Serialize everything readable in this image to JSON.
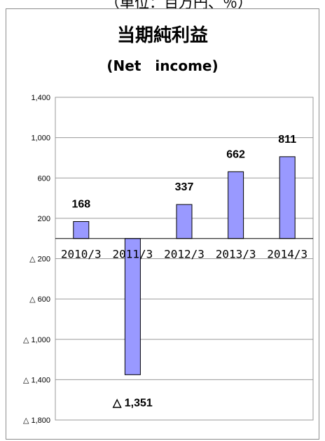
{
  "header_clip": "（単位：百万円、％）",
  "chart_data": {
    "type": "bar",
    "title": "当期純利益",
    "subtitle": "(Net　income)",
    "categories": [
      "2010/3",
      "2011/3",
      "2012/3",
      "2013/3",
      "2014/3"
    ],
    "series": [
      {
        "values": [
          168,
          -1351,
          337,
          662,
          811
        ]
      }
    ],
    "data_labels": [
      "168",
      "△ 1,351",
      "337",
      "662",
      "811"
    ],
    "y_ticks": [
      1400,
      1000,
      600,
      200,
      -200,
      -600,
      -1000,
      -1400,
      -1800
    ],
    "y_tick_labels": [
      "1,400",
      "1,000",
      "600",
      "200",
      "△ 200",
      "△ 600",
      "△ 1,000",
      "△ 1,400",
      "△ 1,800"
    ],
    "ylim": [
      -1800,
      1400
    ],
    "grid": true,
    "bar_color": "#9999ff"
  }
}
